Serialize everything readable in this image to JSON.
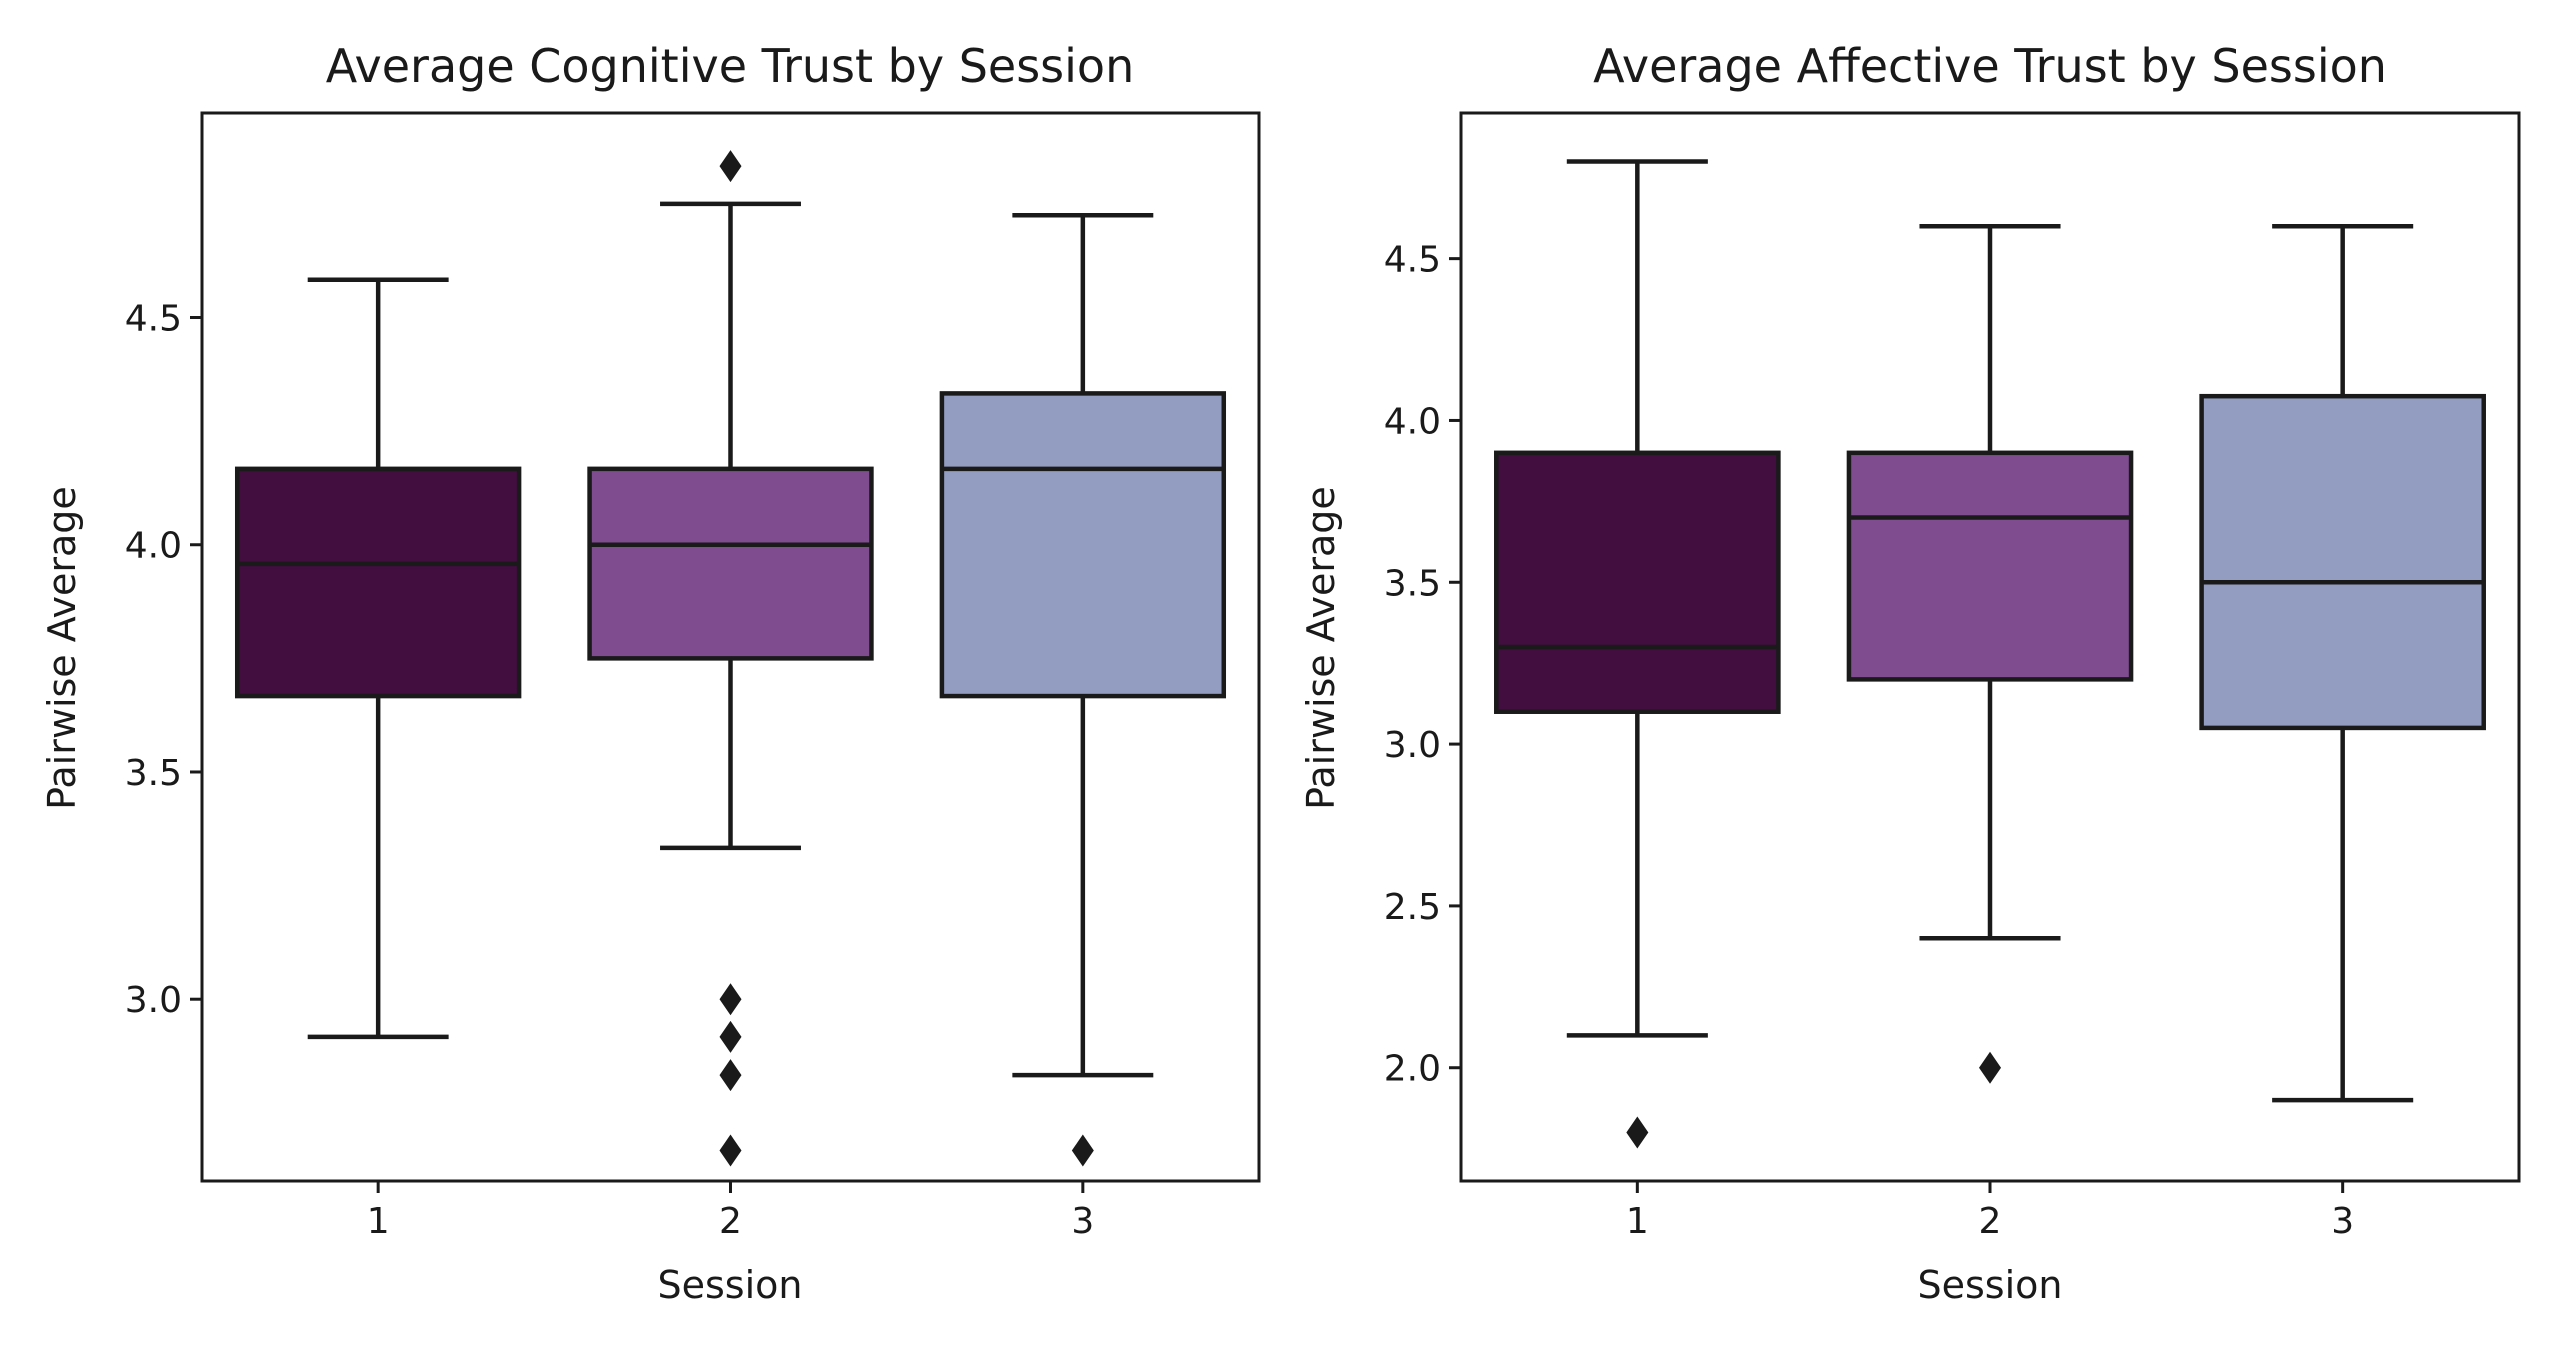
{
  "chart_data": [
    {
      "type": "box",
      "title": "Average Cognitive Trust by Session",
      "xlabel": "Session",
      "ylabel": "Pairwise Average",
      "ylim": [
        2.6,
        4.95
      ],
      "yticks": [
        3.0,
        3.5,
        4.0,
        4.5
      ],
      "ytick_labels": [
        "3.0",
        "3.5",
        "4.0",
        "4.5"
      ],
      "categories": [
        "1",
        "2",
        "3"
      ],
      "grid": false,
      "boxes": [
        {
          "category": "1",
          "color": "#420d3f",
          "whisker_low": 2.917,
          "q1": 3.667,
          "median": 3.958,
          "q3": 4.167,
          "whisker_high": 4.583,
          "outliers": []
        },
        {
          "category": "2",
          "color": "#7f4c90",
          "whisker_low": 3.333,
          "q1": 3.75,
          "median": 4.0,
          "q3": 4.167,
          "whisker_high": 4.75,
          "outliers": [
            4.833,
            3.0,
            2.917,
            2.833,
            2.667
          ]
        },
        {
          "category": "3",
          "color": "#939cc1",
          "whisker_low": 2.833,
          "q1": 3.667,
          "median": 4.167,
          "q3": 4.333,
          "whisker_high": 4.725,
          "outliers": [
            2.667
          ]
        }
      ]
    },
    {
      "type": "box",
      "title": "Average Affective Trust by Session",
      "xlabel": "Session",
      "ylabel": "Pairwise Average",
      "ylim": [
        1.65,
        4.95
      ],
      "yticks": [
        2.0,
        2.5,
        3.0,
        3.5,
        4.0,
        4.5
      ],
      "ytick_labels": [
        "2.0",
        "2.5",
        "3.0",
        "3.5",
        "4.0",
        "4.5"
      ],
      "categories": [
        "1",
        "2",
        "3"
      ],
      "grid": false,
      "boxes": [
        {
          "category": "1",
          "color": "#420d3f",
          "whisker_low": 2.1,
          "q1": 3.1,
          "median": 3.3,
          "q3": 3.9,
          "whisker_high": 4.8,
          "outliers": [
            1.8
          ]
        },
        {
          "category": "2",
          "color": "#7f4c90",
          "whisker_low": 2.4,
          "q1": 3.2,
          "median": 3.7,
          "q3": 3.9,
          "whisker_high": 4.6,
          "outliers": [
            2.0
          ]
        },
        {
          "category": "3",
          "color": "#939cc1",
          "whisker_low": 1.9,
          "q1": 3.05,
          "median": 3.5,
          "q3": 4.075,
          "whisker_high": 4.6,
          "outliers": []
        }
      ]
    }
  ],
  "colors": {
    "line": "#1a1a1a",
    "background": "#ffffff"
  }
}
